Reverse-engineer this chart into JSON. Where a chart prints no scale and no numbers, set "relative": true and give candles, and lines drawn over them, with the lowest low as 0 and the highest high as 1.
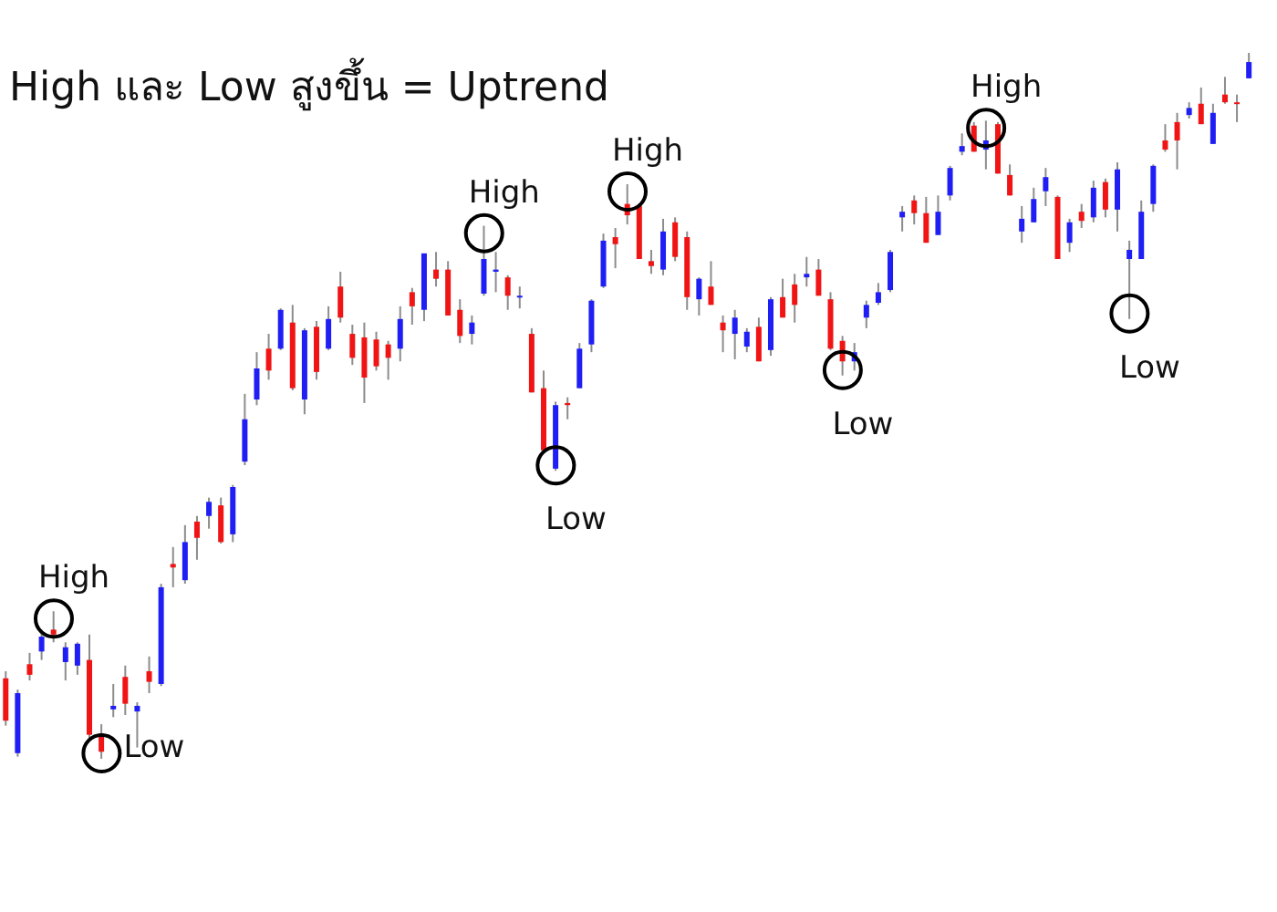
{
  "chart_data": {
    "type": "candlestick",
    "title": "High และ Low สูงขึ้น = Uptrend",
    "relative": true,
    "categories": [
      null,
      null,
      null,
      null,
      null,
      null,
      null,
      null,
      null,
      null,
      null,
      null,
      null,
      null,
      null,
      null,
      null,
      null,
      null,
      null,
      null,
      null,
      null,
      null,
      null,
      null,
      null,
      null,
      null,
      null,
      null,
      null,
      null,
      null,
      null,
      null,
      null,
      null,
      null,
      null,
      null,
      null,
      null,
      null,
      null,
      null,
      null,
      null,
      null,
      null,
      null,
      null,
      null,
      null,
      null,
      null,
      null,
      null,
      null,
      null,
      null,
      null,
      null,
      null,
      null,
      null,
      null,
      null,
      null,
      null,
      null,
      null,
      null,
      null,
      null,
      null,
      null,
      null,
      null,
      null,
      null,
      null,
      null,
      null,
      null,
      null,
      null,
      null,
      null,
      null,
      null,
      null,
      null,
      null,
      null,
      null,
      null,
      null,
      null,
      null,
      null,
      null,
      null,
      null,
      null
    ],
    "ohlc": [
      [
        0.114,
        0.124,
        0.047,
        0.054
      ],
      [
        0.008,
        0.098,
        0.003,
        0.093
      ],
      [
        0.134,
        0.15,
        0.111,
        0.119
      ],
      [
        0.152,
        0.183,
        0.14,
        0.173
      ],
      [
        0.183,
        0.209,
        0.165,
        0.176
      ],
      [
        0.137,
        0.165,
        0.111,
        0.158
      ],
      [
        0.132,
        0.165,
        0.119,
        0.163
      ],
      [
        0.14,
        0.176,
        0.028,
        0.034
      ],
      [
        0.036,
        0.049,
        0,
        0.01
      ],
      [
        0.07,
        0.106,
        0.059,
        0.075
      ],
      [
        0.116,
        0.132,
        0.062,
        0.078
      ],
      [
        0.067,
        0.08,
        0.016,
        0.075
      ],
      [
        0.124,
        0.145,
        0.093,
        0.109
      ],
      [
        0.106,
        0.248,
        0.103,
        0.243
      ],
      [
        0.276,
        0.3,
        0.243,
        0.271
      ],
      [
        0.253,
        0.331,
        0.248,
        0.307
      ],
      [
        0.336,
        0.344,
        0.282,
        0.313
      ],
      [
        0.344,
        0.37,
        0.326,
        0.364
      ],
      [
        0.359,
        0.37,
        0.305,
        0.307
      ],
      [
        0.318,
        0.388,
        0.307,
        0.385
      ],
      [
        0.421,
        0.517,
        0.416,
        0.481
      ],
      [
        0.509,
        0.576,
        0.501,
        0.553
      ],
      [
        0.581,
        0.602,
        0.537,
        0.55
      ],
      [
        0.581,
        0.638,
        0.579,
        0.636
      ],
      [
        0.618,
        0.643,
        0.522,
        0.525
      ],
      [
        0.509,
        0.61,
        0.488,
        0.607
      ],
      [
        0.612,
        0.62,
        0.537,
        0.548
      ],
      [
        0.581,
        0.641,
        0.579,
        0.623
      ],
      [
        0.669,
        0.69,
        0.618,
        0.625
      ],
      [
        0.602,
        0.615,
        0.558,
        0.568
      ],
      [
        0.597,
        0.618,
        0.504,
        0.54
      ],
      [
        0.594,
        0.605,
        0.55,
        0.556
      ],
      [
        0.587,
        0.592,
        0.537,
        0.568
      ],
      [
        0.581,
        0.641,
        0.563,
        0.623
      ],
      [
        0.661,
        0.667,
        0.615,
        0.641
      ],
      [
        0.636,
        0.716,
        0.62,
        0.716
      ],
      [
        0.693,
        0.718,
        0.669,
        0.68
      ],
      [
        0.693,
        0.705,
        0.628,
        0.628
      ],
      [
        0.636,
        0.651,
        0.589,
        0.599
      ],
      [
        0.602,
        0.628,
        0.587,
        0.618
      ],
      [
        0.659,
        0.755,
        0.656,
        0.708
      ],
      [
        0.69,
        0.718,
        0.661,
        0.693
      ],
      [
        0.682,
        0.685,
        0.636,
        0.656
      ],
      [
        0.654,
        0.669,
        0.638,
        0.656
      ],
      [
        0.602,
        0.61,
        0.519,
        0.519
      ],
      [
        0.525,
        0.55,
        0.437,
        0.437
      ],
      [
        0.411,
        0.506,
        0.408,
        0.501
      ],
      [
        0.504,
        0.512,
        0.481,
        0.501
      ],
      [
        0.525,
        0.589,
        0.525,
        0.581
      ],
      [
        0.587,
        0.651,
        0.576,
        0.649
      ],
      [
        0.669,
        0.744,
        0.667,
        0.734
      ],
      [
        0.739,
        0.752,
        0.695,
        0.729
      ],
      [
        0.786,
        0.814,
        0.757,
        0.77
      ],
      [
        0.783,
        0.786,
        0.708,
        0.708
      ],
      [
        0.705,
        0.721,
        0.687,
        0.698
      ],
      [
        0.693,
        0.765,
        0.685,
        0.747
      ],
      [
        0.76,
        0.767,
        0.705,
        0.711
      ],
      [
        0.739,
        0.747,
        0.636,
        0.654
      ],
      [
        0.651,
        0.682,
        0.628,
        0.68
      ],
      [
        0.669,
        0.705,
        0.643,
        0.643
      ],
      [
        0.618,
        0.628,
        0.576,
        0.607
      ],
      [
        0.602,
        0.636,
        0.566,
        0.625
      ],
      [
        0.584,
        0.61,
        0.576,
        0.605
      ],
      [
        0.612,
        0.625,
        0.563,
        0.563
      ],
      [
        0.579,
        0.654,
        0.571,
        0.651
      ],
      [
        0.654,
        0.68,
        0.625,
        0.625
      ],
      [
        0.672,
        0.687,
        0.618,
        0.643
      ],
      [
        0.682,
        0.711,
        0.669,
        0.687
      ],
      [
        0.693,
        0.708,
        0.656,
        0.656
      ],
      [
        0.651,
        0.661,
        0.579,
        0.581
      ],
      [
        0.592,
        0.599,
        0.543,
        0.563
      ],
      [
        0.563,
        0.589,
        0.55,
        0.576
      ],
      [
        0.625,
        0.649,
        0.61,
        0.643
      ],
      [
        0.646,
        0.674,
        0.643,
        0.661
      ],
      [
        0.664,
        0.721,
        0.661,
        0.718
      ],
      [
        0.767,
        0.783,
        0.747,
        0.775
      ],
      [
        0.791,
        0.798,
        0.757,
        0.773
      ],
      [
        0.773,
        0.796,
        0.731,
        0.731
      ],
      [
        0.742,
        0.798,
        0.742,
        0.775
      ],
      [
        0.798,
        0.84,
        0.791,
        0.837
      ],
      [
        0.86,
        0.886,
        0.855,
        0.868
      ],
      [
        0.897,
        0.902,
        0.86,
        0.86
      ],
      [
        0.863,
        0.904,
        0.835,
        0.876
      ],
      [
        0.899,
        0.902,
        0.829,
        0.829
      ],
      [
        0.827,
        0.842,
        0.798,
        0.798
      ],
      [
        0.747,
        0.783,
        0.731,
        0.765
      ],
      [
        0.76,
        0.809,
        0.76,
        0.793
      ],
      [
        0.804,
        0.837,
        0.783,
        0.824
      ],
      [
        0.796,
        0.798,
        0.708,
        0.708
      ],
      [
        0.731,
        0.765,
        0.718,
        0.76
      ],
      [
        0.775,
        0.786,
        0.752,
        0.762
      ],
      [
        0.767,
        0.819,
        0.76,
        0.809
      ],
      [
        0.817,
        0.822,
        0.767,
        0.778
      ],
      [
        0.778,
        0.845,
        0.747,
        0.835
      ],
      [
        0.708,
        0.734,
        0.623,
        0.721
      ],
      [
        0.708,
        0.791,
        0.708,
        0.775
      ],
      [
        0.786,
        0.842,
        0.775,
        0.84
      ],
      [
        0.876,
        0.899,
        0.86,
        0.863
      ],
      [
        0.902,
        0.915,
        0.835,
        0.876
      ],
      [
        0.912,
        0.93,
        0.907,
        0.922
      ],
      [
        0.928,
        0.951,
        0.899,
        0.899
      ],
      [
        0.871,
        0.928,
        0.871,
        0.915
      ],
      [
        0.941,
        0.966,
        0.928,
        0.93
      ],
      [
        0.93,
        0.941,
        0.902,
        0.928
      ],
      [
        0.964,
        1,
        0.964,
        0.987
      ]
    ],
    "colors": [
      "#f01414",
      "#1e1ef5",
      "#f01414",
      "#1e1ef5",
      "#f01414",
      "#1e1ef5",
      "#1e1ef5",
      "#f01414",
      "#f01414",
      "#1e1ef5",
      "#f01414",
      "#1e1ef5",
      "#f01414",
      "#1e1ef5",
      "#f01414",
      "#1e1ef5",
      "#f01414",
      "#1e1ef5",
      "#f01414",
      "#1e1ef5",
      "#1e1ef5",
      "#1e1ef5",
      "#f01414",
      "#1e1ef5",
      "#f01414",
      "#1e1ef5",
      "#f01414",
      "#1e1ef5",
      "#f01414",
      "#f01414",
      "#f01414",
      "#f01414",
      "#f01414",
      "#1e1ef5",
      "#f01414",
      "#1e1ef5",
      "#f01414",
      "#f01414",
      "#f01414",
      "#1e1ef5",
      "#1e1ef5",
      "#1e1ef5",
      "#f01414",
      "#1e1ef5",
      "#f01414",
      "#f01414",
      "#1e1ef5",
      "#f01414",
      "#1e1ef5",
      "#1e1ef5",
      "#1e1ef5",
      "#f01414",
      "#f01414",
      "#f01414",
      "#f01414",
      "#1e1ef5",
      "#f01414",
      "#f01414",
      "#1e1ef5",
      "#f01414",
      "#f01414",
      "#1e1ef5",
      "#1e1ef5",
      "#f01414",
      "#1e1ef5",
      "#f01414",
      "#f01414",
      "#1e1ef5",
      "#f01414",
      "#f01414",
      "#f01414",
      "#1e1ef5",
      "#1e1ef5",
      "#1e1ef5",
      "#1e1ef5",
      "#1e1ef5",
      "#f01414",
      "#f01414",
      "#1e1ef5",
      "#1e1ef5",
      "#1e1ef5",
      "#f01414",
      "#1e1ef5",
      "#f01414",
      "#f01414",
      "#1e1ef5",
      "#1e1ef5",
      "#1e1ef5",
      "#f01414",
      "#1e1ef5",
      "#f01414",
      "#1e1ef5",
      "#f01414",
      "#1e1ef5",
      "#1e1ef5",
      "#1e1ef5",
      "#1e1ef5",
      "#f01414",
      "#f01414",
      "#1e1ef5",
      "#f01414",
      "#1e1ef5",
      "#f01414",
      "#f01414",
      "#1e1ef5"
    ],
    "annotations": [
      "High",
      "Low",
      "High",
      "Low",
      "High",
      "Low",
      "High",
      "Low"
    ]
  }
}
